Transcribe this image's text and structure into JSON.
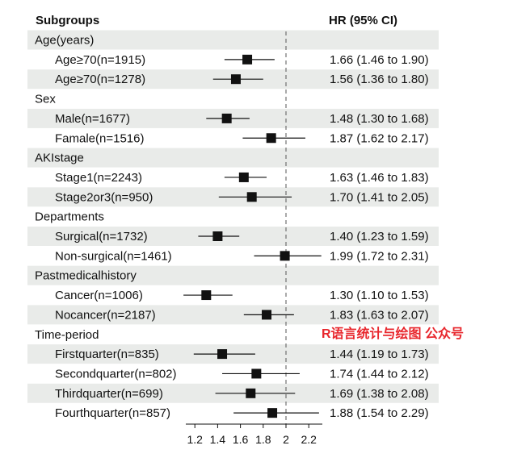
{
  "chart_data": {
    "type": "forest",
    "header": {
      "label_col": "Subgroups",
      "value_col": "HR (95% CI)"
    },
    "reference_line": 2,
    "xlim": [
      1.1,
      2.4
    ],
    "x_ticks": [
      1.2,
      1.4,
      1.6,
      1.8,
      2,
      2.2
    ],
    "x_tick_labels": [
      "1.2",
      "1.4",
      "1.6",
      "1.8",
      "2",
      "2.2"
    ],
    "rows": [
      {
        "kind": "group",
        "label": "Age(years)"
      },
      {
        "kind": "item",
        "label": "Age≥70(n=1915)",
        "hr": 1.66,
        "lo": 1.46,
        "hi": 1.9,
        "text": "1.66 (1.46 to 1.90)"
      },
      {
        "kind": "item",
        "label": "Age≥70(n=1278)",
        "hr": 1.56,
        "lo": 1.36,
        "hi": 1.8,
        "text": "1.56 (1.36 to 1.80)"
      },
      {
        "kind": "group",
        "label": "Sex"
      },
      {
        "kind": "item",
        "label": "Male(n=1677)",
        "hr": 1.48,
        "lo": 1.3,
        "hi": 1.68,
        "text": "1.48 (1.30 to 1.68)"
      },
      {
        "kind": "item",
        "label": "Famale(n=1516)",
        "hr": 1.87,
        "lo": 1.62,
        "hi": 2.17,
        "text": "1.87 (1.62 to 2.17)"
      },
      {
        "kind": "group",
        "label": "AKIstage"
      },
      {
        "kind": "item",
        "label": "Stage1(n=2243)",
        "hr": 1.63,
        "lo": 1.46,
        "hi": 1.83,
        "text": "1.63 (1.46 to 1.83)"
      },
      {
        "kind": "item",
        "label": "Stage2or3(n=950)",
        "hr": 1.7,
        "lo": 1.41,
        "hi": 2.05,
        "text": "1.70 (1.41 to 2.05)"
      },
      {
        "kind": "group",
        "label": "Departments"
      },
      {
        "kind": "item",
        "label": "Surgical(n=1732)",
        "hr": 1.4,
        "lo": 1.23,
        "hi": 1.59,
        "text": "1.40 (1.23 to 1.59)"
      },
      {
        "kind": "item",
        "label": "Non-surgical(n=1461)",
        "hr": 1.99,
        "lo": 1.72,
        "hi": 2.31,
        "text": "1.99 (1.72 to 2.31)"
      },
      {
        "kind": "group",
        "label": "Pastmedicalhistory"
      },
      {
        "kind": "item",
        "label": "Cancer(n=1006)",
        "hr": 1.3,
        "lo": 1.1,
        "hi": 1.53,
        "text": "1.30 (1.10 to 1.53)"
      },
      {
        "kind": "item",
        "label": "Nocancer(n=2187)",
        "hr": 1.83,
        "lo": 1.63,
        "hi": 2.07,
        "text": "1.83 (1.63 to 2.07)"
      },
      {
        "kind": "group",
        "label": "Time-period"
      },
      {
        "kind": "item",
        "label": "Firstquarter(n=835)",
        "hr": 1.44,
        "lo": 1.19,
        "hi": 1.73,
        "text": "1.44 (1.19 to 1.73)"
      },
      {
        "kind": "item",
        "label": "Secondquarter(n=802)",
        "hr": 1.74,
        "lo": 1.44,
        "hi": 2.12,
        "text": "1.74 (1.44 to 2.12)"
      },
      {
        "kind": "item",
        "label": "Thirdquarter(n=699)",
        "hr": 1.69,
        "lo": 1.38,
        "hi": 2.08,
        "text": "1.69 (1.38 to 2.08)"
      },
      {
        "kind": "item",
        "label": "Fourthquarter(n=857)",
        "hr": 1.88,
        "lo": 1.54,
        "hi": 2.29,
        "text": "1.88 (1.54 to 2.29)"
      }
    ],
    "watermark": "R语言统计与绘图 公众号"
  },
  "colors": {
    "band": "#e9ebe9",
    "ink": "#111111",
    "watermark": "#e8262c"
  }
}
